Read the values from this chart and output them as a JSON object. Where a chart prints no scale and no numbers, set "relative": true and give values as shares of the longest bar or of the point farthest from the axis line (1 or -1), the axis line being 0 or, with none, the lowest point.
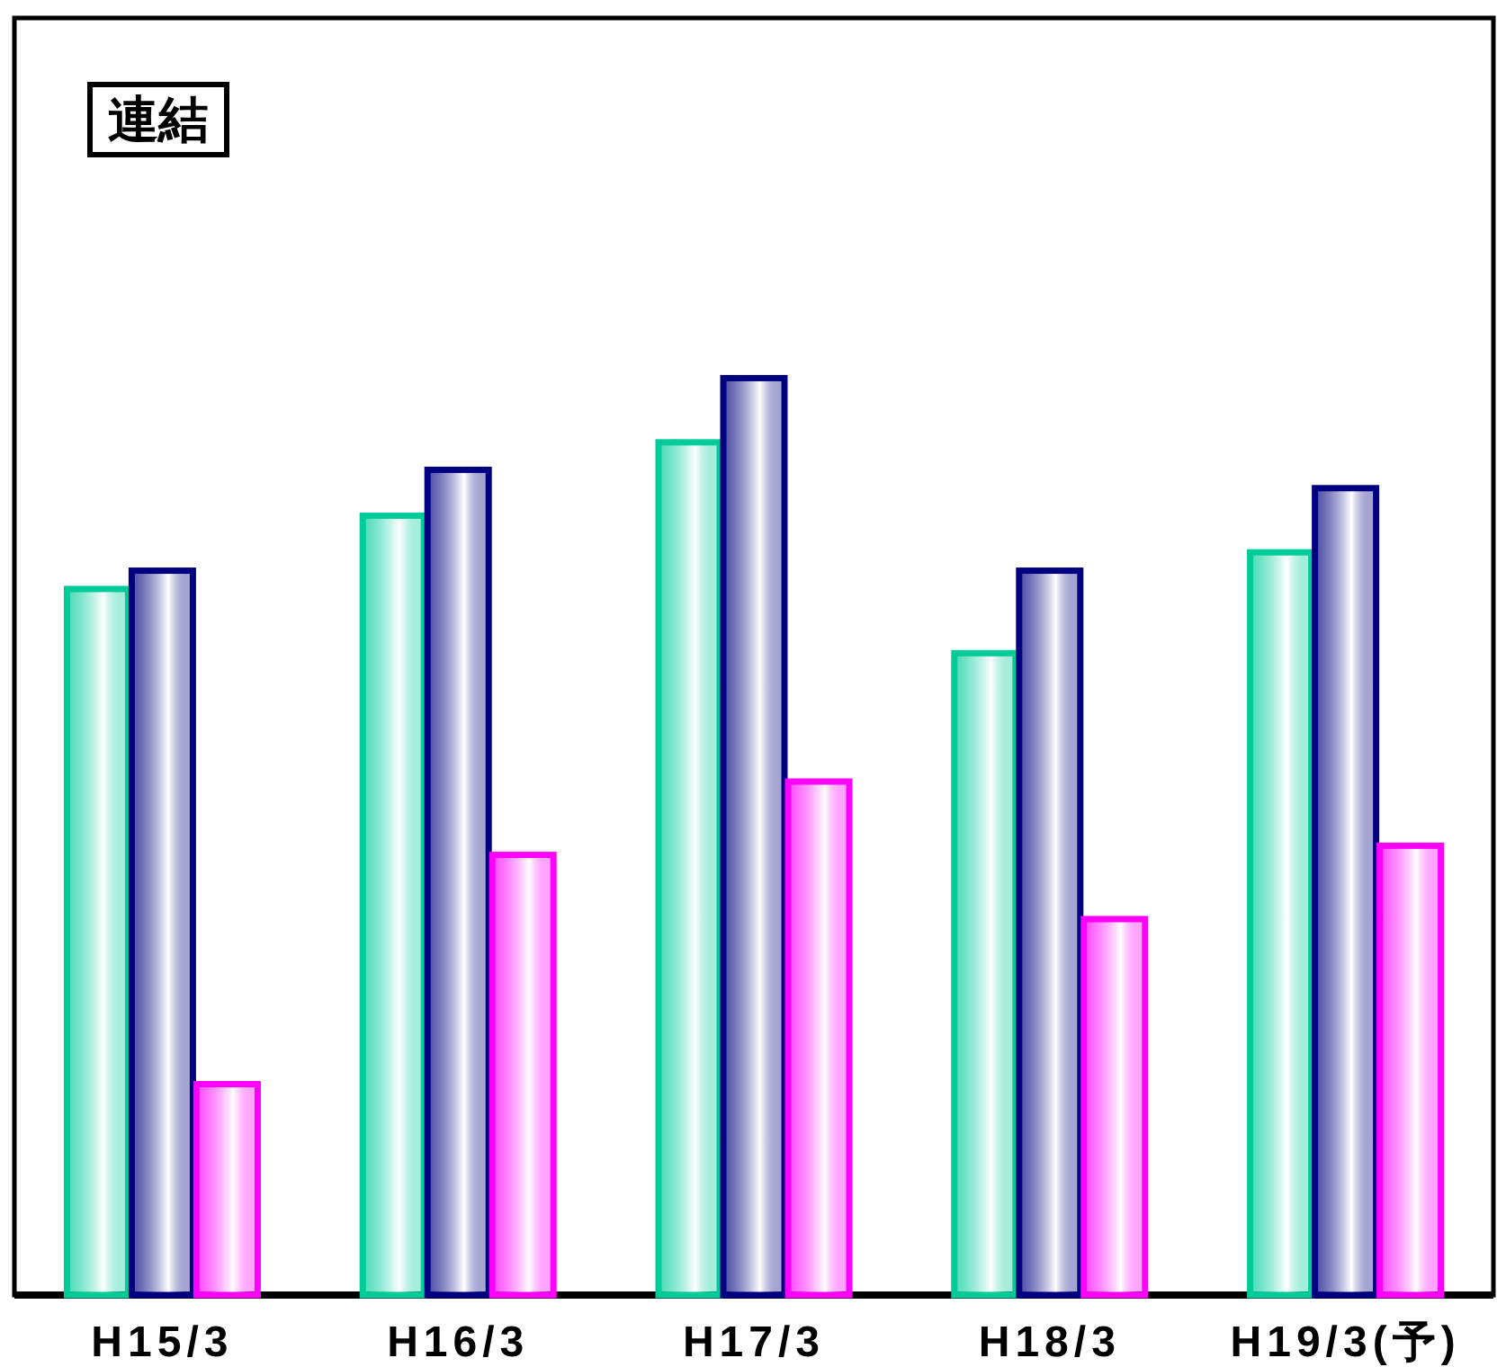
{
  "chart_data": {
    "type": "bar",
    "title": "連結",
    "relative": true,
    "categories": [
      "H15/3",
      "H16/3",
      "H17/3",
      "H18/3",
      "H19/3(予)"
    ],
    "series": [
      {
        "color": "#00cc99",
        "values": [
          0.77,
          0.85,
          0.93,
          0.7,
          0.81
        ]
      },
      {
        "color": "#000080",
        "values": [
          0.79,
          0.9,
          1,
          0.79,
          0.88
        ]
      },
      {
        "color": "#ff00ff",
        "values": [
          0.23,
          0.48,
          0.56,
          0.41,
          0.49
        ]
      }
    ],
    "grid": false
  }
}
